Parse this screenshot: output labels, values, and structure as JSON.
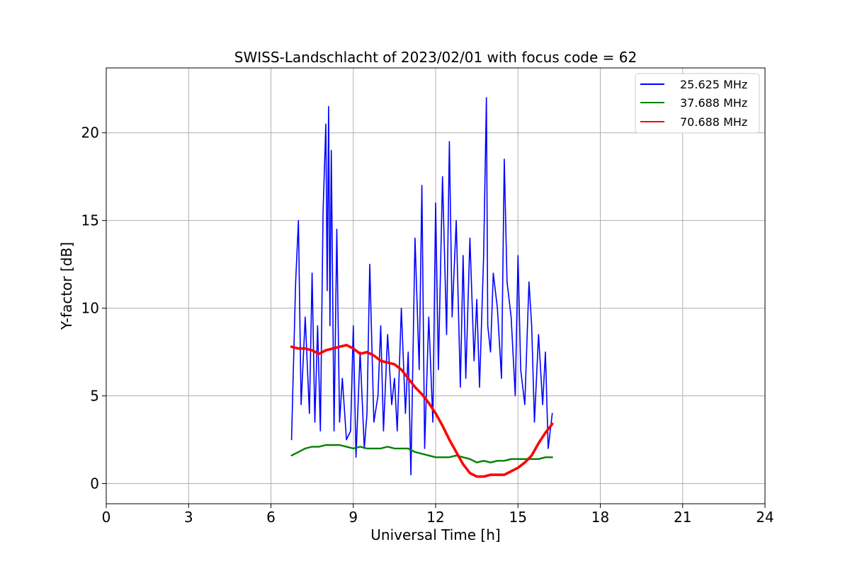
{
  "chart_data": {
    "type": "line",
    "title": "SWISS-Landschlacht of 2023/02/01 with focus code = 62",
    "xlabel": "Universal Time [h]",
    "ylabel": "Y-factor [dB]",
    "xlim": [
      0,
      24
    ],
    "ylim": [
      -1.15,
      23.7
    ],
    "xticks": [
      0,
      3,
      6,
      9,
      12,
      15,
      18,
      21,
      24
    ],
    "yticks": [
      0,
      5,
      10,
      15,
      20
    ],
    "grid": true,
    "legend_position": "top-right",
    "series": [
      {
        "name": "25.625 MHz",
        "color": "#0000ff",
        "x": [
          6.75,
          6.8,
          6.9,
          7.0,
          7.1,
          7.25,
          7.4,
          7.5,
          7.6,
          7.7,
          7.8,
          7.9,
          8.0,
          8.05,
          8.1,
          8.15,
          8.2,
          8.3,
          8.4,
          8.5,
          8.6,
          8.75,
          8.9,
          9.0,
          9.1,
          9.25,
          9.4,
          9.5,
          9.6,
          9.75,
          9.9,
          10.0,
          10.1,
          10.25,
          10.4,
          10.5,
          10.6,
          10.75,
          10.9,
          11.0,
          11.1,
          11.25,
          11.4,
          11.5,
          11.6,
          11.75,
          11.9,
          12.0,
          12.1,
          12.25,
          12.4,
          12.5,
          12.6,
          12.75,
          12.9,
          13.0,
          13.1,
          13.25,
          13.4,
          13.5,
          13.6,
          13.75,
          13.85,
          13.9,
          14.0,
          14.1,
          14.25,
          14.4,
          14.5,
          14.6,
          14.75,
          14.9,
          15.0,
          15.1,
          15.25,
          15.4,
          15.5,
          15.6,
          15.75,
          15.9,
          16.0,
          16.1,
          16.25
        ],
        "y": [
          2.5,
          5.5,
          11.5,
          15.0,
          4.5,
          9.5,
          4.0,
          12.0,
          3.5,
          9.0,
          3.0,
          15.5,
          20.5,
          11.0,
          21.5,
          9.0,
          19.0,
          3.0,
          14.5,
          3.5,
          6.0,
          2.5,
          3.0,
          9.0,
          1.5,
          7.5,
          2.0,
          4.0,
          12.5,
          3.5,
          5.0,
          9.0,
          3.0,
          8.5,
          4.5,
          6.0,
          3.0,
          10.0,
          4.0,
          7.5,
          0.5,
          14.0,
          6.5,
          17.0,
          2.0,
          9.5,
          3.5,
          16.0,
          6.5,
          17.5,
          8.5,
          19.5,
          9.5,
          15.0,
          5.5,
          13.0,
          6.0,
          14.0,
          7.0,
          10.5,
          5.5,
          13.0,
          22.0,
          9.0,
          7.5,
          12.0,
          10.0,
          6.0,
          18.5,
          11.5,
          9.5,
          5.0,
          13.0,
          6.5,
          4.5,
          11.5,
          9.0,
          3.5,
          8.5,
          4.5,
          7.5,
          2.0,
          4.0
        ]
      },
      {
        "name": "37.688 MHz",
        "color": "#008000",
        "x": [
          6.75,
          7.0,
          7.25,
          7.5,
          7.75,
          8.0,
          8.25,
          8.5,
          8.75,
          9.0,
          9.25,
          9.5,
          9.75,
          10.0,
          10.25,
          10.5,
          10.75,
          11.0,
          11.25,
          11.5,
          11.75,
          12.0,
          12.25,
          12.5,
          12.75,
          13.0,
          13.25,
          13.5,
          13.75,
          14.0,
          14.25,
          14.5,
          14.75,
          15.0,
          15.25,
          15.5,
          15.75,
          16.0,
          16.25
        ],
        "y": [
          1.6,
          1.8,
          2.0,
          2.1,
          2.1,
          2.2,
          2.2,
          2.2,
          2.1,
          2.0,
          2.1,
          2.0,
          2.0,
          2.0,
          2.1,
          2.0,
          2.0,
          2.0,
          1.8,
          1.7,
          1.6,
          1.5,
          1.5,
          1.5,
          1.6,
          1.5,
          1.4,
          1.2,
          1.3,
          1.2,
          1.3,
          1.3,
          1.4,
          1.4,
          1.4,
          1.4,
          1.4,
          1.5,
          1.5
        ]
      },
      {
        "name": "70.688 MHz",
        "color": "#ff0000",
        "x": [
          6.75,
          7.0,
          7.25,
          7.5,
          7.75,
          8.0,
          8.25,
          8.5,
          8.75,
          9.0,
          9.25,
          9.5,
          9.75,
          10.0,
          10.25,
          10.5,
          10.75,
          11.0,
          11.25,
          11.5,
          11.75,
          12.0,
          12.25,
          12.5,
          12.75,
          13.0,
          13.25,
          13.5,
          13.75,
          14.0,
          14.25,
          14.5,
          14.75,
          15.0,
          15.25,
          15.5,
          15.75,
          16.0,
          16.25
        ],
        "y": [
          7.8,
          7.7,
          7.7,
          7.6,
          7.4,
          7.6,
          7.7,
          7.8,
          7.9,
          7.7,
          7.4,
          7.5,
          7.3,
          7.0,
          6.9,
          6.8,
          6.5,
          6.0,
          5.5,
          5.1,
          4.6,
          4.0,
          3.3,
          2.5,
          1.8,
          1.1,
          0.6,
          0.4,
          0.4,
          0.5,
          0.5,
          0.5,
          0.7,
          0.9,
          1.2,
          1.6,
          2.3,
          2.9,
          3.4
        ]
      }
    ]
  }
}
